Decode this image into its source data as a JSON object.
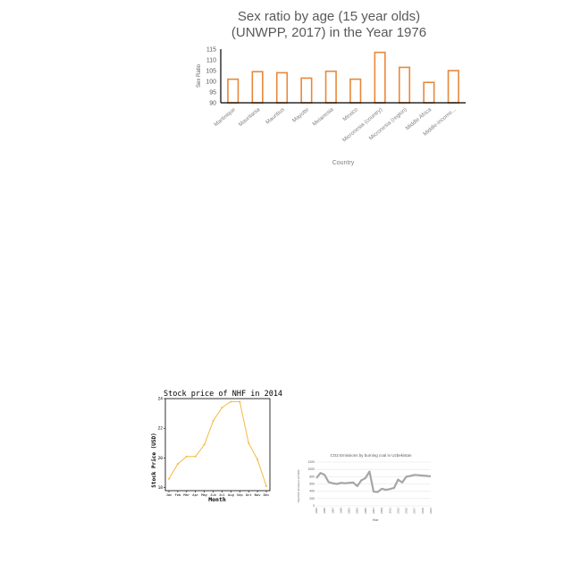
{
  "chart_data": [
    {
      "type": "bar",
      "title": "Sex ratio by age (15 year olds)",
      "subtitle": "(UNWPP, 2017) in the Year 1976",
      "xlabel": "Country",
      "ylabel": "Sex Ratio",
      "ylim": [
        90,
        115
      ],
      "yticks": [
        90,
        95,
        100,
        105,
        110,
        115
      ],
      "categories": [
        "Martinique",
        "Mauritania",
        "Mauritius",
        "Mayotte",
        "Melanesia",
        "Mexico",
        "Micronesia (country)",
        "Micronesia (region)",
        "Middle Africa",
        "Middle-income..."
      ],
      "values": [
        101,
        104.5,
        104,
        101.5,
        104.7,
        101,
        113.5,
        106.5,
        99.5,
        105
      ],
      "bar_style": "outline",
      "color": "#e8883a",
      "grid": false
    },
    {
      "type": "line",
      "title": "Stock price of NHF in 2014",
      "xlabel": "Month",
      "ylabel": "Stock Price (USD)",
      "categories": [
        "Jan",
        "Feb",
        "Mar",
        "Apr",
        "May",
        "Jun",
        "Jul",
        "Aug",
        "Sep",
        "Oct",
        "Nov",
        "Dec"
      ],
      "values": [
        18.6,
        19.6,
        20.1,
        20.1,
        20.9,
        22.5,
        23.4,
        23.8,
        23.8,
        21.0,
        19.9,
        18.1
      ],
      "ylim": [
        17.8,
        24.0
      ],
      "yticks": [
        18,
        20,
        22,
        24
      ],
      "color": "#f5b83d",
      "markers": true,
      "grid": false
    },
    {
      "type": "line",
      "title": "CO2 Emissions by burning coal in Uzbekistan",
      "xlabel": "Year",
      "ylabel": "Total CO2 Emissions (kT'000)",
      "x": [
        1993,
        1994,
        1995,
        1996,
        1997,
        1998,
        1999,
        2000,
        2001,
        2002,
        2003,
        2004,
        2005,
        2006,
        2007,
        2008,
        2009,
        2010,
        2011,
        2012,
        2013,
        2014,
        2015,
        2016,
        2017,
        2018,
        2019,
        2020,
        2021
      ],
      "values": [
        760,
        900,
        850,
        650,
        620,
        600,
        630,
        620,
        630,
        640,
        540,
        700,
        760,
        940,
        390,
        380,
        470,
        440,
        460,
        490,
        720,
        640,
        800,
        820,
        850,
        840,
        830,
        820,
        810
      ],
      "xticks": [
        "1993",
        "1995",
        "1997",
        "1999",
        "2001",
        "2003",
        "2005",
        "2007",
        "2009",
        "2011",
        "2013",
        "2015",
        "2017",
        "2019",
        "2021"
      ],
      "ylim": [
        0,
        1200
      ],
      "yticks": [
        0,
        200,
        400,
        600,
        800,
        1000,
        1200
      ],
      "color": "#a6a6a6",
      "grid": true
    }
  ]
}
